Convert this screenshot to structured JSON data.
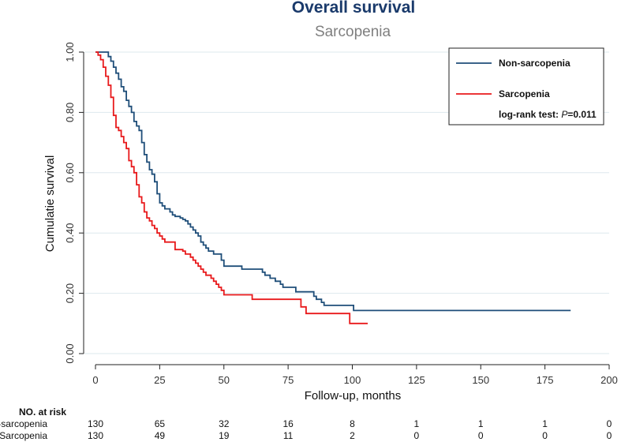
{
  "chart_data": {
    "type": "line",
    "subtype": "kaplan-meier",
    "title": "Overall survival",
    "subtitle": "Sarcopenia",
    "xlabel": "Follow-up, months",
    "ylabel": "Cumulatie survival",
    "xlim": [
      0,
      200
    ],
    "ylim": [
      0,
      1
    ],
    "xticks": [
      0,
      25,
      50,
      75,
      100,
      125,
      150,
      175,
      200
    ],
    "xtick_labels": [
      "0",
      "25",
      "50",
      "75",
      "100",
      "125",
      "150",
      "175",
      "200"
    ],
    "yticks": [
      0,
      0.2,
      0.4,
      0.6,
      0.8,
      1.0
    ],
    "ytick_labels": [
      "0.00",
      "0.20",
      "0.40",
      "0.60",
      "0.80",
      "1.00"
    ],
    "grid": "horizontal",
    "legend_position": "top-right",
    "annotation": {
      "prefix": "log-rank test: ",
      "italic": "P",
      "suffix": "=0.011"
    },
    "series": [
      {
        "name": "Non-sarcopenia",
        "color": "#1f4e79",
        "points": [
          [
            0,
            1.0
          ],
          [
            3,
            1.0
          ],
          [
            5,
            0.985
          ],
          [
            6,
            0.97
          ],
          [
            7,
            0.95
          ],
          [
            8,
            0.93
          ],
          [
            9,
            0.91
          ],
          [
            10,
            0.885
          ],
          [
            11,
            0.87
          ],
          [
            12,
            0.84
          ],
          [
            13,
            0.82
          ],
          [
            14,
            0.8
          ],
          [
            15,
            0.77
          ],
          [
            16,
            0.755
          ],
          [
            17,
            0.74
          ],
          [
            18,
            0.7
          ],
          [
            19,
            0.66
          ],
          [
            20,
            0.635
          ],
          [
            21,
            0.61
          ],
          [
            22,
            0.595
          ],
          [
            23,
            0.57
          ],
          [
            24,
            0.53
          ],
          [
            25,
            0.5
          ],
          [
            26,
            0.49
          ],
          [
            27,
            0.48
          ],
          [
            29,
            0.47
          ],
          [
            30,
            0.46
          ],
          [
            31,
            0.455
          ],
          [
            33,
            0.45
          ],
          [
            34,
            0.445
          ],
          [
            35,
            0.44
          ],
          [
            36,
            0.43
          ],
          [
            37,
            0.42
          ],
          [
            38,
            0.41
          ],
          [
            39,
            0.4
          ],
          [
            40,
            0.39
          ],
          [
            41,
            0.37
          ],
          [
            42,
            0.36
          ],
          [
            43,
            0.35
          ],
          [
            44,
            0.34
          ],
          [
            46,
            0.33
          ],
          [
            49,
            0.31
          ],
          [
            50,
            0.29
          ],
          [
            55,
            0.29
          ],
          [
            57,
            0.28
          ],
          [
            63,
            0.28
          ],
          [
            65,
            0.27
          ],
          [
            66,
            0.26
          ],
          [
            68,
            0.25
          ],
          [
            70,
            0.24
          ],
          [
            72,
            0.23
          ],
          [
            73,
            0.22
          ],
          [
            77,
            0.22
          ],
          [
            78,
            0.205
          ],
          [
            84,
            0.205
          ],
          [
            85,
            0.19
          ],
          [
            86,
            0.18
          ],
          [
            88,
            0.17
          ],
          [
            89,
            0.16
          ],
          [
            100,
            0.16
          ],
          [
            100.5,
            0.143
          ],
          [
            185,
            0.143
          ]
        ]
      },
      {
        "name": "Sarcopenia",
        "color": "#e8191b",
        "points": [
          [
            0,
            1.0
          ],
          [
            1,
            0.99
          ],
          [
            2,
            0.975
          ],
          [
            3,
            0.95
          ],
          [
            4,
            0.92
          ],
          [
            5,
            0.89
          ],
          [
            6,
            0.85
          ],
          [
            7,
            0.79
          ],
          [
            8,
            0.75
          ],
          [
            9,
            0.74
          ],
          [
            10,
            0.72
          ],
          [
            11,
            0.7
          ],
          [
            12,
            0.68
          ],
          [
            13,
            0.64
          ],
          [
            14,
            0.62
          ],
          [
            15,
            0.6
          ],
          [
            16,
            0.56
          ],
          [
            17,
            0.52
          ],
          [
            18,
            0.5
          ],
          [
            19,
            0.47
          ],
          [
            20,
            0.45
          ],
          [
            21,
            0.44
          ],
          [
            22,
            0.425
          ],
          [
            23,
            0.415
          ],
          [
            24,
            0.4
          ],
          [
            25,
            0.39
          ],
          [
            26,
            0.38
          ],
          [
            27,
            0.37
          ],
          [
            30,
            0.37
          ],
          [
            31,
            0.345
          ],
          [
            34,
            0.34
          ],
          [
            35,
            0.33
          ],
          [
            37,
            0.32
          ],
          [
            38,
            0.31
          ],
          [
            39,
            0.3
          ],
          [
            40,
            0.29
          ],
          [
            41,
            0.28
          ],
          [
            42,
            0.27
          ],
          [
            43,
            0.26
          ],
          [
            45,
            0.25
          ],
          [
            46,
            0.24
          ],
          [
            47,
            0.23
          ],
          [
            48,
            0.22
          ],
          [
            49,
            0.21
          ],
          [
            50,
            0.195
          ],
          [
            60,
            0.195
          ],
          [
            61,
            0.18
          ],
          [
            79,
            0.18
          ],
          [
            80,
            0.155
          ],
          [
            81,
            0.155
          ],
          [
            82,
            0.133
          ],
          [
            98,
            0.133
          ],
          [
            99,
            0.1
          ],
          [
            106,
            0.1
          ]
        ]
      }
    ],
    "risk_table": {
      "header": "NO. at risk",
      "times": [
        0,
        25,
        50,
        75,
        100,
        125,
        150,
        175,
        200
      ],
      "rows": [
        {
          "label": "Non-sarcopenia",
          "counts": [
            "130",
            "65",
            "32",
            "16",
            "8",
            "1",
            "1",
            "1",
            "0"
          ]
        },
        {
          "label": "Sarcopenia",
          "counts": [
            "130",
            "49",
            "19",
            "11",
            "2",
            "0",
            "0",
            "0",
            "0"
          ]
        }
      ]
    }
  }
}
